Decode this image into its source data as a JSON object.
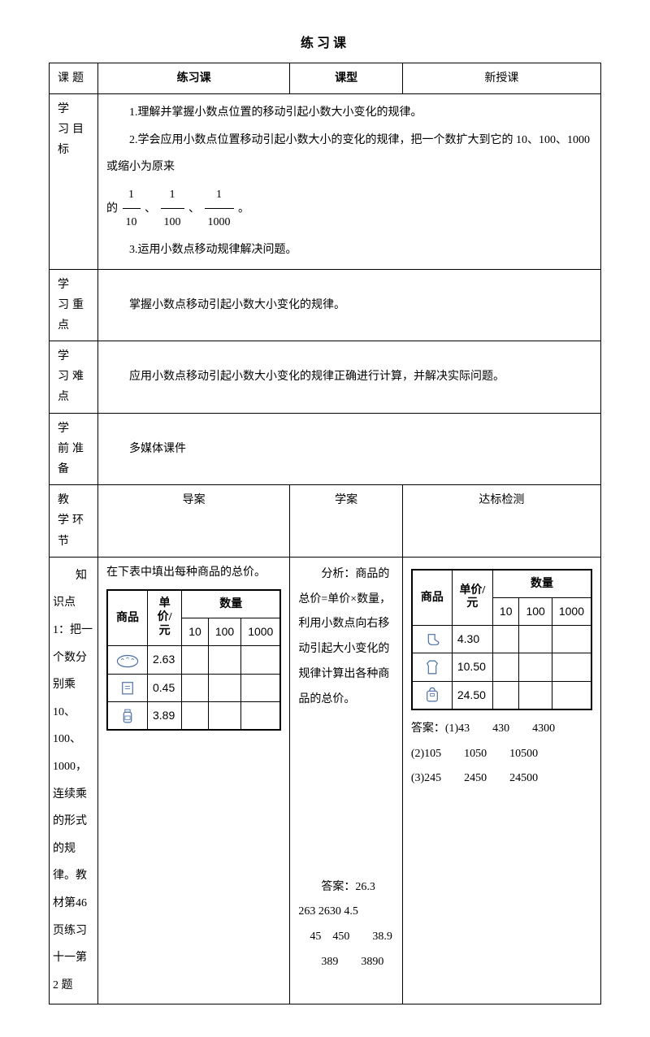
{
  "title": "练习课",
  "row_header": {
    "keti_label": "课题",
    "keti_value": "练习课",
    "kexing_label": "课型",
    "kexing_value": "新授课"
  },
  "goals": {
    "label": "学　习目标",
    "line1": "1.理解并掌握小数点位置的移动引起小数大小变化的规律。",
    "line2_pre": "2.学会应用小数点位置移动引起小数大小的变化的规律，把一个数扩大到它的 10、100、1000 或缩小为原来",
    "line2_mid": "的",
    "fractions": [
      {
        "num": "1",
        "den": "10"
      },
      {
        "num": "1",
        "den": "100"
      },
      {
        "num": "1",
        "den": "1000"
      }
    ],
    "line2_sep": "、",
    "line2_end": "。",
    "line3": "3.运用小数点移动规律解决问题。"
  },
  "zhongdian": {
    "label": "学　习重点",
    "text": "掌握小数点移动引起小数大小变化的规律。"
  },
  "nandian": {
    "label": "学　习难点",
    "text": "应用小数点移动引起小数大小变化的规律正确进行计算，并解决实际问题。"
  },
  "zhunbei": {
    "label": "学　前准备",
    "text": "多媒体课件"
  },
  "huanjie": {
    "label": "教　学环节",
    "col1": "导案",
    "col2": "学案",
    "col3": "达标检测"
  },
  "side_text": "　　知识点 1：把一个数分别乘 10、100、1000，连续乘的形式的规律。教材第46 页练习十一第 2 题",
  "daoan": {
    "prompt": "在下表中填出每种商品的总价。",
    "table": {
      "hdr_product": "商品",
      "hdr_price": "单价/元",
      "hdr_qty": "数量",
      "qty_cols": [
        "10",
        "100",
        "1000"
      ],
      "rows": [
        {
          "icon": "bread",
          "price": "2.63"
        },
        {
          "icon": "book",
          "price": "0.45"
        },
        {
          "icon": "bottle",
          "price": "3.89"
        }
      ]
    }
  },
  "xuean": {
    "analysis": "　　分析：商品的总价=单价×数量，利用小数点向右移动引起大小变化的规律计算出各种商品的总价。",
    "answer_label": "　　答案：26.3　263 2630 4.5",
    "answer_line2": "　45　450　　38.9",
    "answer_line3": "　　389　　3890"
  },
  "dabi": {
    "table": {
      "hdr_product": "商品",
      "hdr_price": "单价/元",
      "hdr_qty": "数量",
      "qty_cols": [
        "10",
        "100",
        "1000"
      ],
      "rows": [
        {
          "icon": "socks",
          "price": "4.30"
        },
        {
          "icon": "shirt",
          "price": "10.50"
        },
        {
          "icon": "bag",
          "price": "24.50"
        }
      ]
    },
    "ans1": "答案：(1)43　　430　　4300",
    "ans2": "(2)105　　1050　　10500",
    "ans3": "(3)245　　2450　　24500"
  },
  "colors": {
    "icon_stroke": "#4a6fa5"
  }
}
